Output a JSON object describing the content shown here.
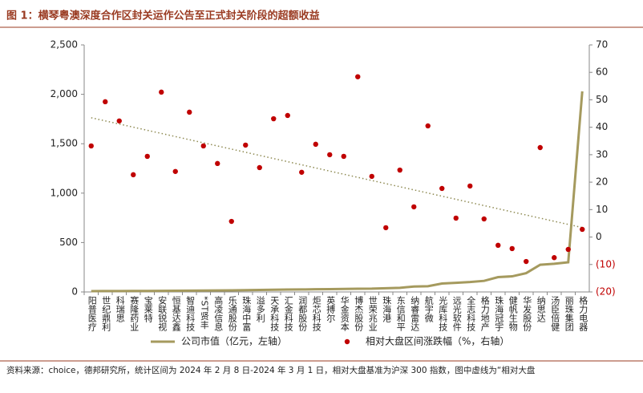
{
  "chart_data": {
    "type": "bar-line-dual",
    "title": "图 1：横琴粤澳深度合作区封关运作公告至正式封关阶段的超额收益",
    "categories": [
      "阳普医疗",
      "世纪鼎利",
      "科瑞思",
      "赛隆药业",
      "宝莱特",
      "安联锐视",
      "恒基达鑫",
      "智迪科技",
      "*ST贤丰",
      "高凌信息",
      "乐通股份",
      "珠海中富",
      "溢多利",
      "天承科技",
      "汇金科技",
      "润都股份",
      "炬芯科技",
      "英搏尔",
      "华金资本",
      "博杰股份",
      "世荣兆业",
      "珠海港",
      "东信和平",
      "纳睿雷达",
      "航宇微",
      "光库科技",
      "远光软件",
      "全志科技",
      "格力地产",
      "珠海冠宇",
      "健帆生物",
      "华发股份",
      "纳思达",
      "汤臣倍健",
      "丽珠集团",
      "格力电器"
    ],
    "series": [
      {
        "name": "公司市值（亿元，左轴）",
        "color": "#a59a5e",
        "kind": "line",
        "axis": "y",
        "values": [
          8,
          9,
          9,
          10,
          10,
          11,
          12,
          13,
          14,
          15,
          16,
          18,
          20,
          22,
          24,
          25,
          27,
          28,
          30,
          32,
          33,
          38,
          42,
          55,
          58,
          85,
          92,
          100,
          112,
          150,
          158,
          190,
          275,
          285,
          300,
          2030
        ]
      },
      {
        "name": "相对大盘区间涨跌幅（%，右轴）",
        "color": "#c00000",
        "kind": "dot",
        "axis": "y2",
        "values": [
          33.2,
          49.3,
          42.3,
          22.7,
          29.4,
          52.8,
          23.9,
          45.5,
          33.2,
          26.8,
          5.7,
          33.5,
          25.3,
          43.1,
          44.3,
          23.6,
          33.8,
          30,
          29.4,
          58.4,
          22.1,
          3.4,
          24.4,
          11,
          40.5,
          17.7,
          6.9,
          18.6,
          6.6,
          -3,
          -4.2,
          -8.9,
          32.6,
          -7.5,
          -4.5,
          2.8
        ]
      }
    ],
    "trendline": {
      "series": 1,
      "color": "#8e8a52"
    },
    "ylim": [
      0,
      2500
    ],
    "yticks": [
      0,
      500,
      {
        "value": 1000,
        "label": "1,000"
      },
      {
        "value": 1500,
        "label": "1,500"
      },
      {
        "value": 2000,
        "label": "2,000"
      },
      {
        "value": 2500,
        "label": "2,500"
      }
    ],
    "y2lim": [
      -20,
      70
    ],
    "y2ticks": [
      {
        "value": -20,
        "label": "(20)"
      },
      {
        "value": -10,
        "label": "(10)"
      },
      0,
      10,
      20,
      30,
      40,
      50,
      60,
      70
    ],
    "negative_tick_color": "#c00000",
    "source": "资料来源：choice，德邦研究所，统计区间为 2024 年 2 月 8 日-2024 年 3 月 1 日，相对大盘基准为沪深 300 指数，图中虚线为“相对大盘"
  }
}
